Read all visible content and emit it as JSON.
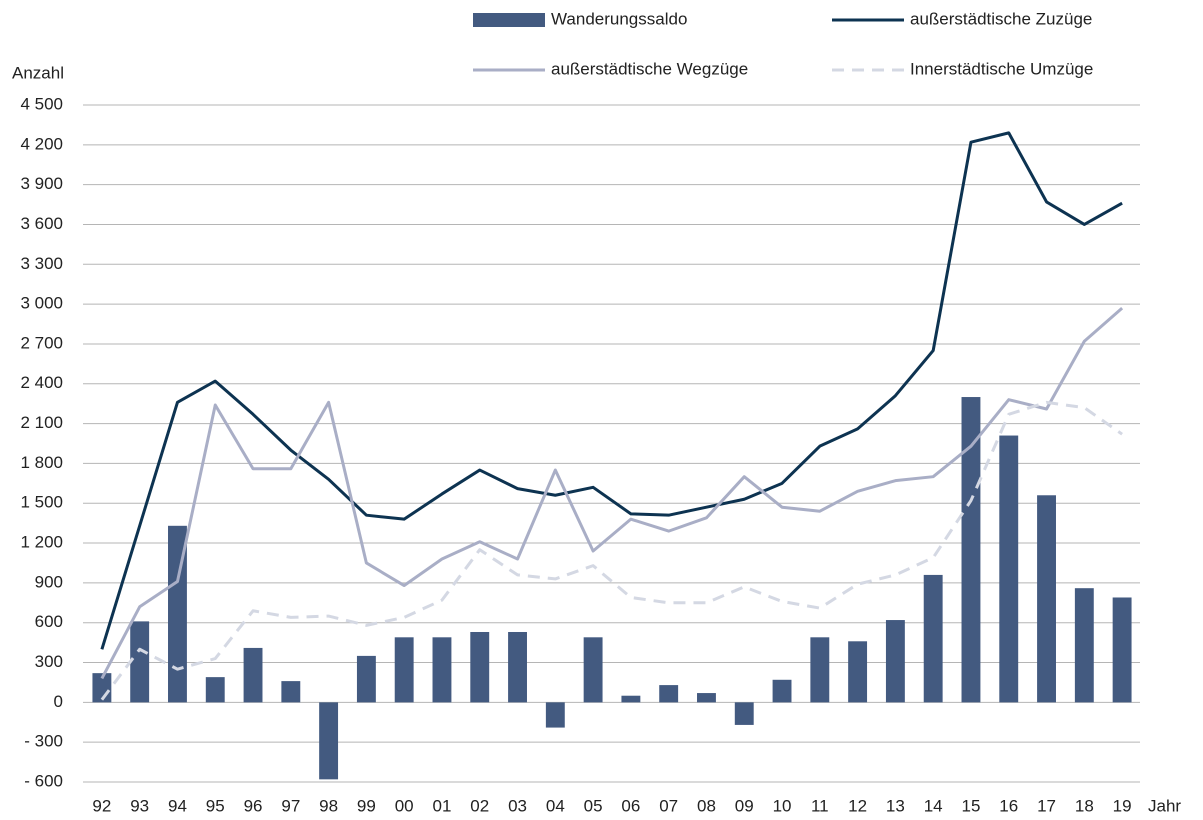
{
  "chart_data": {
    "type": "bar",
    "y_label": "Anzahl",
    "x_label": "Jahr",
    "categories": [
      "92",
      "93",
      "94",
      "95",
      "96",
      "97",
      "98",
      "99",
      "00",
      "01",
      "02",
      "03",
      "04",
      "05",
      "06",
      "07",
      "08",
      "09",
      "10",
      "11",
      "12",
      "13",
      "14",
      "15",
      "16",
      "17",
      "18",
      "19"
    ],
    "series": [
      {
        "name": "Wanderungssaldo",
        "type": "bar",
        "color": "#435a80",
        "values": [
          220,
          610,
          1330,
          190,
          410,
          160,
          -580,
          350,
          490,
          490,
          530,
          530,
          -190,
          490,
          50,
          130,
          70,
          -170,
          170,
          490,
          460,
          620,
          960,
          2300,
          2010,
          1560,
          860,
          790
        ]
      },
      {
        "name": "außerstädtische Zuzüge",
        "type": "line",
        "color": "#0d3351",
        "dashed": false,
        "values": [
          400,
          1330,
          2260,
          2420,
          2170,
          1900,
          1680,
          1410,
          1380,
          1570,
          1750,
          1610,
          1560,
          1620,
          1420,
          1410,
          1470,
          1530,
          1650,
          1930,
          2060,
          2310,
          2650,
          4220,
          4290,
          3770,
          3600,
          3760
        ]
      },
      {
        "name": "außerstädtische Wegzüge",
        "type": "line",
        "color": "#a9aec6",
        "dashed": false,
        "values": [
          180,
          720,
          910,
          2240,
          1760,
          1760,
          2260,
          1050,
          880,
          1080,
          1210,
          1080,
          1750,
          1140,
          1380,
          1290,
          1390,
          1700,
          1470,
          1440,
          1590,
          1670,
          1700,
          1930,
          2280,
          2210,
          2720,
          2970
        ]
      },
      {
        "name": "Innerstädtische Umzüge",
        "type": "line",
        "color": "#d4d8e3",
        "dashed": true,
        "values": [
          20,
          400,
          250,
          330,
          690,
          640,
          650,
          580,
          640,
          770,
          1150,
          960,
          930,
          1030,
          790,
          750,
          750,
          870,
          760,
          710,
          890,
          960,
          1090,
          1520,
          2170,
          2260,
          2220,
          2020
        ]
      }
    ],
    "ylim": [
      -600,
      4500
    ],
    "yticks": [
      {
        "value": -600,
        "label": "- 600"
      },
      {
        "value": -300,
        "label": "- 300"
      },
      0,
      300,
      600,
      900,
      {
        "value": 1200,
        "label": "1 200"
      },
      {
        "value": 1500,
        "label": "1 500"
      },
      {
        "value": 1800,
        "label": "1 800"
      },
      {
        "value": 2100,
        "label": "2 100"
      },
      {
        "value": 2400,
        "label": "2 400"
      },
      {
        "value": 2700,
        "label": "2 700"
      },
      {
        "value": 3000,
        "label": "3 000"
      },
      {
        "value": 3300,
        "label": "3 300"
      },
      {
        "value": 3600,
        "label": "3 600"
      },
      {
        "value": 3900,
        "label": "3 900"
      },
      {
        "value": 4200,
        "label": "4 200"
      },
      {
        "value": 4500,
        "label": "4 500"
      }
    ],
    "grid": true
  }
}
